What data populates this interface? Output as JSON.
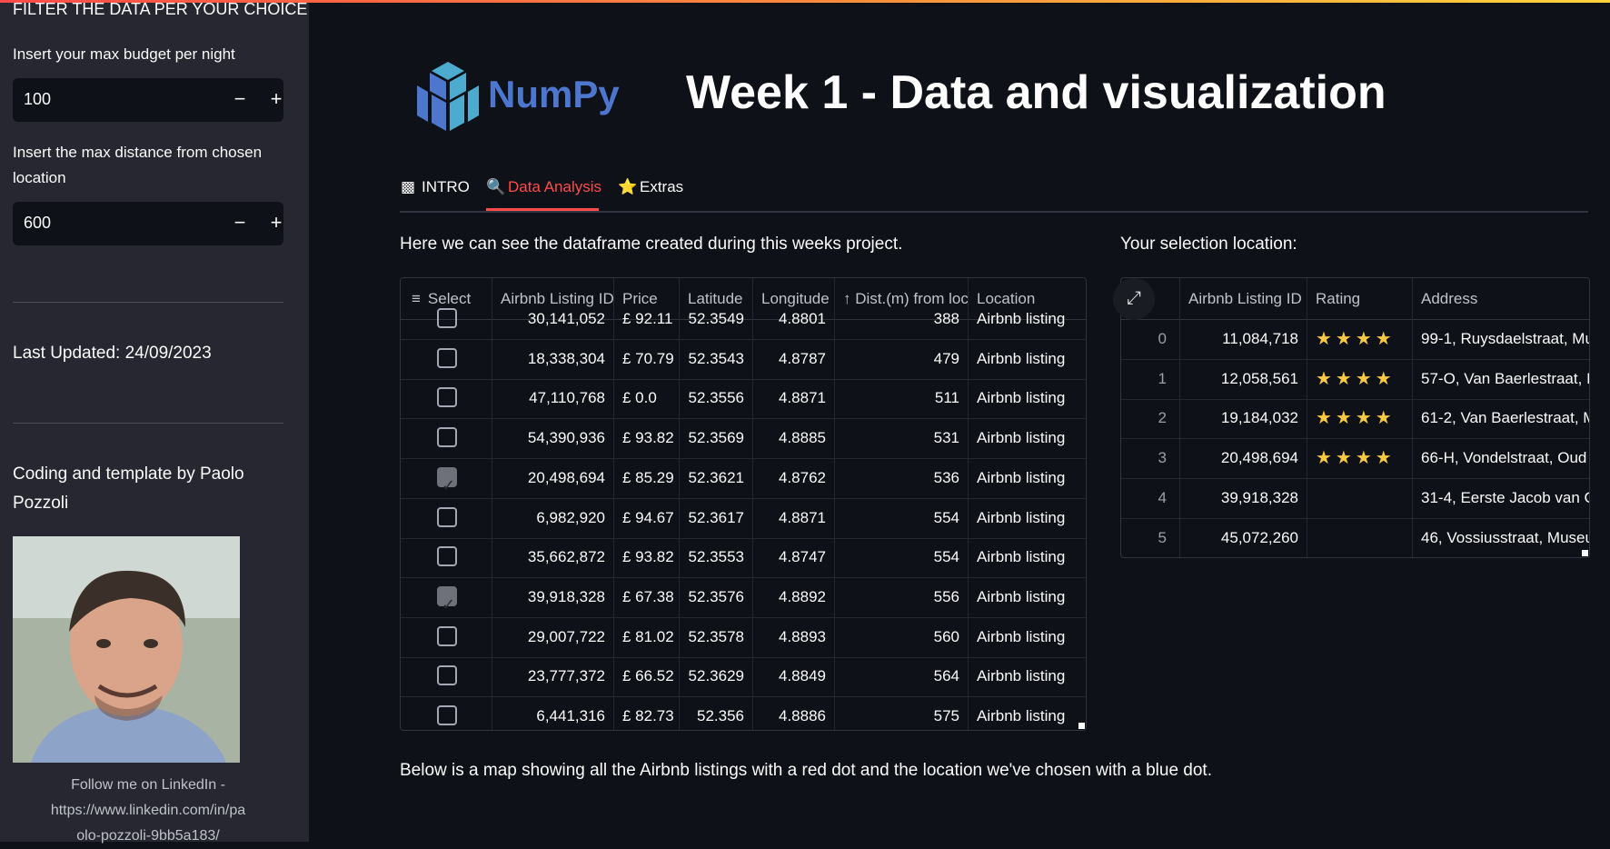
{
  "sidebar": {
    "heading": "FILTER THE DATA PER YOUR CHOICE",
    "budget_label": "Insert your max budget per night",
    "budget_value": "100",
    "distance_label_1": "Insert the max distance from chosen",
    "distance_label_2": "location",
    "distance_value": "600",
    "minus": "−",
    "plus": "+",
    "last_updated": "Last Updated: 24/09/2023",
    "credit_1": "Coding and template by Paolo",
    "credit_2": "Pozzoli",
    "follow_1": "Follow me on LinkedIn -",
    "follow_2": "https://www.linkedin.com/in/pa",
    "follow_3": "olo-pozzoli-9bb5a183/"
  },
  "header": {
    "logo_text": "NumPy",
    "title": "Week 1 - Data and visualization"
  },
  "tabs": [
    {
      "icon": "▩",
      "label": "INTRO"
    },
    {
      "icon": "🔍",
      "label": "Data Analysis"
    },
    {
      "icon": "⭐",
      "label": "Extras"
    }
  ],
  "main": {
    "left_caption": "Here we can see the dataframe created during this weeks project.",
    "right_caption": "Your selection location:",
    "bottom_caption": "Below is a map showing all the Airbnb listings with a red dot and the location we've chosen with a blue dot."
  },
  "left_table": {
    "columns": [
      "Select",
      "Airbnb Listing ID",
      "Price",
      "Latitude",
      "Longitude",
      "↑ Dist.(m) from loc",
      "Location"
    ],
    "rows": [
      {
        "checked": false,
        "id": "30,141,052",
        "price": "£ 92.11",
        "lat": "52.3549",
        "lon": "4.8801",
        "dist": "388",
        "loc": "Airbnb listing"
      },
      {
        "checked": false,
        "id": "18,338,304",
        "price": "£ 70.79",
        "lat": "52.3543",
        "lon": "4.8787",
        "dist": "479",
        "loc": "Airbnb listing"
      },
      {
        "checked": false,
        "id": "47,110,768",
        "price": "£ 0.0",
        "lat": "52.3556",
        "lon": "4.8871",
        "dist": "511",
        "loc": "Airbnb listing"
      },
      {
        "checked": false,
        "id": "54,390,936",
        "price": "£ 93.82",
        "lat": "52.3569",
        "lon": "4.8885",
        "dist": "531",
        "loc": "Airbnb listing"
      },
      {
        "checked": true,
        "id": "20,498,694",
        "price": "£ 85.29",
        "lat": "52.3621",
        "lon": "4.8762",
        "dist": "536",
        "loc": "Airbnb listing"
      },
      {
        "checked": false,
        "id": "6,982,920",
        "price": "£ 94.67",
        "lat": "52.3617",
        "lon": "4.8871",
        "dist": "554",
        "loc": "Airbnb listing"
      },
      {
        "checked": false,
        "id": "35,662,872",
        "price": "£ 93.82",
        "lat": "52.3553",
        "lon": "4.8747",
        "dist": "554",
        "loc": "Airbnb listing"
      },
      {
        "checked": true,
        "id": "39,918,328",
        "price": "£ 67.38",
        "lat": "52.3576",
        "lon": "4.8892",
        "dist": "556",
        "loc": "Airbnb listing"
      },
      {
        "checked": false,
        "id": "29,007,722",
        "price": "£ 81.02",
        "lat": "52.3578",
        "lon": "4.8893",
        "dist": "560",
        "loc": "Airbnb listing"
      },
      {
        "checked": false,
        "id": "23,777,372",
        "price": "£ 66.52",
        "lat": "52.3629",
        "lon": "4.8849",
        "dist": "564",
        "loc": "Airbnb listing"
      },
      {
        "checked": false,
        "id": "6,441,316",
        "price": "£ 82.73",
        "lat": "52.356",
        "lon": "4.8886",
        "dist": "575",
        "loc": "Airbnb listing"
      }
    ]
  },
  "right_table": {
    "columns": [
      "Airbnb Listing ID",
      "Rating",
      "Address"
    ],
    "rows": [
      {
        "idx": "0",
        "id": "11,084,718",
        "rating": "★★★★",
        "addr": "99-1, Ruysdaelstraat, Mu"
      },
      {
        "idx": "1",
        "id": "12,058,561",
        "rating": "★★★★",
        "addr": "57-O, Van Baerlestraat, I"
      },
      {
        "idx": "2",
        "id": "19,184,032",
        "rating": "★★★★",
        "addr": "61-2, Van Baerlestraat, M"
      },
      {
        "idx": "3",
        "id": "20,498,694",
        "rating": "★★★★",
        "addr": "66-H, Vondelstraat, Oud"
      },
      {
        "idx": "4",
        "id": "39,918,328",
        "rating": "",
        "addr": "31-4, Eerste Jacob van C"
      },
      {
        "idx": "5",
        "id": "45,072,260",
        "rating": "",
        "addr": "46, Vossiusstraat, Museu"
      }
    ]
  },
  "colors": {
    "accent": "#ff4b4b",
    "numpy_blue": "#4d77cf",
    "star": "#f7c843"
  }
}
